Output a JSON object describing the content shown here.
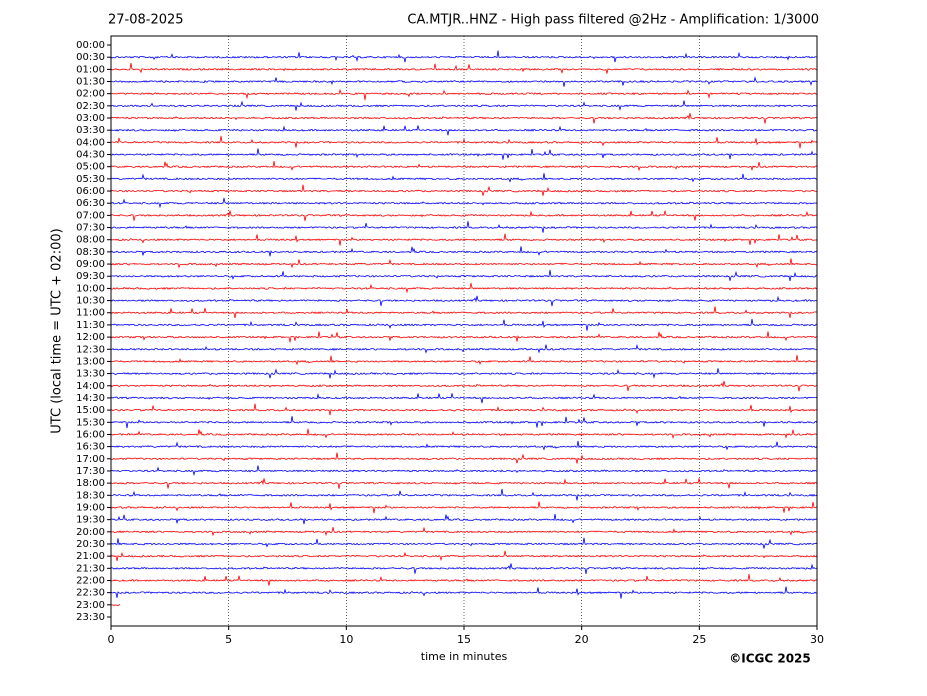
{
  "chart_data": {
    "type": "helicorder",
    "date": "27-08-2025",
    "title": "CA.MTJR..HNZ - High pass filtered @2Hz - Amplification: 1/3000",
    "ylabel": "UTC (local time = UTC + 02:00)",
    "xlabel": "time in minutes",
    "copyright": "©ICGC 2025",
    "categories": [
      "00:00",
      "00:30",
      "01:00",
      "01:30",
      "02:00",
      "02:30",
      "03:00",
      "03:30",
      "04:00",
      "04:30",
      "05:00",
      "05:30",
      "06:00",
      "06:30",
      "07:00",
      "07:30",
      "08:00",
      "08:30",
      "09:00",
      "09:30",
      "10:00",
      "10:30",
      "11:00",
      "11:30",
      "12:00",
      "12:30",
      "13:00",
      "13:30",
      "14:00",
      "14:30",
      "15:00",
      "15:30",
      "16:00",
      "16:30",
      "17:00",
      "17:30",
      "18:00",
      "18:30",
      "19:00",
      "19:30",
      "20:00",
      "20:30",
      "21:00",
      "21:30",
      "22:00",
      "22:30",
      "23:00",
      "23:30"
    ],
    "colors": [
      "#ff0000",
      "#0000ff"
    ],
    "trace_end": [
      null,
      30,
      30,
      30,
      30,
      30,
      30,
      30,
      30,
      30,
      30,
      30,
      30,
      30,
      30,
      30,
      30,
      30,
      30,
      30,
      30,
      30,
      30,
      30,
      30,
      30,
      30,
      30,
      30,
      30,
      30,
      30,
      30,
      30,
      30,
      30,
      30,
      30,
      30,
      30,
      30,
      30,
      30,
      30,
      30,
      30,
      0.4,
      null
    ],
    "xlim": [
      0,
      30
    ],
    "xticks": [
      0,
      5,
      10,
      15,
      20,
      25,
      30
    ],
    "grid": true
  }
}
